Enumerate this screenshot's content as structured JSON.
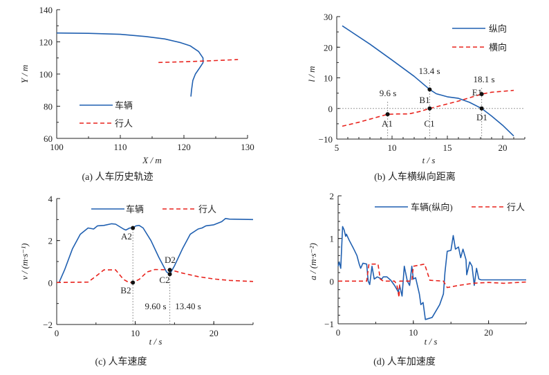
{
  "chart_data": [
    {
      "id": "a",
      "type": "line",
      "caption": "(a)  人车历史轨迹",
      "xlabel": "X / m",
      "ylabel": "Y / m",
      "xlim": [
        100,
        130
      ],
      "ylim": [
        60,
        140
      ],
      "xticks": [
        100,
        110,
        120,
        130
      ],
      "yticks": [
        60,
        80,
        100,
        120,
        140
      ],
      "xminor": 5,
      "yminor": 10,
      "series": [
        {
          "name": "车辆",
          "color": "#1f5fb0",
          "dash": false,
          "x": [
            100,
            105,
            110,
            114,
            117,
            119.5,
            121,
            122.3,
            123,
            123,
            122.5,
            121.8,
            121.4,
            121.2,
            121.1
          ],
          "y": [
            125.5,
            125.3,
            124.7,
            123.3,
            121.8,
            119.5,
            117.5,
            114,
            110,
            107,
            104,
            100,
            96,
            90,
            86
          ]
        },
        {
          "name": "行人",
          "color": "#e8221c",
          "dash": true,
          "x": [
            116,
            120,
            124,
            128.5
          ],
          "y": [
            107.2,
            107.6,
            108.2,
            109
          ]
        }
      ],
      "points": [],
      "annotations": []
    },
    {
      "id": "b",
      "type": "line",
      "caption": "(b)  人车横纵向距离",
      "xlabel": "t / s",
      "ylabel": "l / m",
      "xlim": [
        5,
        22
      ],
      "ylim": [
        -10,
        30
      ],
      "xticks": [
        5,
        10,
        15,
        20
      ],
      "yticks": [
        -10,
        0,
        10,
        20,
        30
      ],
      "xminor": 1,
      "yminor": 5,
      "hline": 0,
      "series": [
        {
          "name": "纵向",
          "color": "#1f5fb0",
          "dash": false,
          "x": [
            5.5,
            8,
            10,
            12,
            13.4,
            14,
            15,
            16,
            17,
            18.1,
            19,
            20,
            21
          ],
          "y": [
            27,
            21,
            15.8,
            10.5,
            6.2,
            4.8,
            3.8,
            3.3,
            2,
            0,
            -2.5,
            -5.5,
            -9
          ]
        },
        {
          "name": "横向",
          "color": "#e8221c",
          "dash": true,
          "x": [
            5.5,
            7,
            8.5,
            9.6,
            10.5,
            11.5,
            12.5,
            13.4,
            14.5,
            16,
            17,
            18.1,
            19,
            20,
            21
          ],
          "y": [
            -5.8,
            -4.5,
            -3,
            -1.9,
            -1.8,
            -1.8,
            -1,
            0,
            1,
            2.4,
            3.5,
            4.7,
            5.3,
            5.6,
            5.9
          ]
        }
      ],
      "vlines": [
        {
          "x": 9.6,
          "top": 2.5
        },
        {
          "x": 13.4,
          "top": 9.5
        },
        {
          "x": 18.1,
          "top": 7
        }
      ],
      "points": [
        {
          "label": "A1",
          "x": 9.6,
          "y": -1.9
        },
        {
          "label": "B1",
          "x": 13.4,
          "y": 6.2
        },
        {
          "label": "C1",
          "x": 13.4,
          "y": 0
        },
        {
          "label": "D1",
          "x": 18.1,
          "y": 0
        },
        {
          "label": "E1",
          "x": 18.1,
          "y": 4.7
        }
      ],
      "annotations": [
        "9.6 s",
        "13.4 s",
        "18.1 s"
      ]
    },
    {
      "id": "c",
      "type": "line",
      "caption": "(c)  人车速度",
      "xlabel": "t / s",
      "ylabel": "v / (m·s⁻¹)",
      "xlim": [
        0,
        25
      ],
      "ylim": [
        -2,
        4
      ],
      "xticks": [
        0,
        10,
        20
      ],
      "yticks": [
        -2,
        0,
        2,
        4
      ],
      "xminor": 5,
      "yminor": 1,
      "series": [
        {
          "name": "车辆",
          "color": "#1f5fb0",
          "dash": false,
          "x": [
            0.3,
            1,
            2,
            3,
            4,
            4.7,
            5.2,
            6,
            7,
            7.5,
            8.5,
            8.8,
            9.3,
            9.7,
            10.1,
            10.5,
            11,
            12,
            13,
            14,
            14.4,
            15,
            16,
            17,
            18,
            18.5,
            19,
            20,
            21,
            21.5,
            22,
            25
          ],
          "y": [
            0,
            0.6,
            1.6,
            2.3,
            2.6,
            2.55,
            2.7,
            2.72,
            2.8,
            2.78,
            2.55,
            2.5,
            2.6,
            2.6,
            2.7,
            2.72,
            2.6,
            2,
            1.2,
            0.5,
            0.4,
            0.8,
            1.6,
            2.3,
            2.55,
            2.6,
            2.7,
            2.75,
            2.9,
            3.05,
            3.02,
            3.0
          ]
        },
        {
          "name": "行人",
          "color": "#e8221c",
          "dash": true,
          "x": [
            0,
            4,
            5,
            6,
            7.5,
            8.5,
            9.2,
            9.7,
            10.5,
            11.5,
            12.5,
            14.5,
            16,
            18,
            20,
            22,
            25
          ],
          "y": [
            0,
            0.02,
            0.3,
            0.6,
            0.6,
            0.15,
            0,
            0,
            0.15,
            0.5,
            0.62,
            0.6,
            0.45,
            0.28,
            0.17,
            0.1,
            0.05
          ]
        }
      ],
      "vlines": [
        {
          "x": 9.7,
          "top": 2.6
        },
        {
          "x": 14.4,
          "top": 0.6
        }
      ],
      "points": [
        {
          "label": "A2",
          "x": 9.7,
          "y": 2.6
        },
        {
          "label": "B2",
          "x": 9.7,
          "y": 0
        },
        {
          "label": "D2",
          "x": 14.4,
          "y": 0.6
        },
        {
          "label": "C2",
          "x": 14.4,
          "y": 0.4
        }
      ],
      "annotations": [
        "9.60 s",
        "13.40 s"
      ]
    },
    {
      "id": "d",
      "type": "line",
      "caption": "(d)  人车加速度",
      "xlabel": "t / s",
      "ylabel": "a / (m·s⁻²)",
      "xlim": [
        0,
        25
      ],
      "ylim": [
        -1,
        2
      ],
      "xticks": [
        0,
        10,
        20
      ],
      "yticks": [
        -1,
        0,
        1,
        2
      ],
      "xminor": 5,
      "yminor": 0.2,
      "series": [
        {
          "name": "车辆(纵向)",
          "color": "#1f5fb0",
          "dash": false,
          "x": [
            0,
            0.15,
            0.35,
            0.6,
            0.8,
            1,
            1.1,
            1.5,
            2,
            2.5,
            2.8,
            3,
            3.3,
            3.8,
            4,
            4.2,
            4.5,
            4.8,
            5.2,
            5.8,
            6,
            6.5,
            7,
            7.5,
            8,
            8.2,
            8.5,
            8.8,
            9.2,
            9.5,
            9.8,
            10,
            10.3,
            10.8,
            11,
            11.3,
            11.6,
            12.5,
            13.5,
            14,
            14.2,
            14.5,
            15,
            15.3,
            15.6,
            16,
            16.3,
            16.6,
            17,
            17.1,
            17.5,
            17.8,
            18.1,
            18.4,
            18.7,
            19,
            25
          ],
          "y": [
            0.35,
            0.45,
            0.3,
            1.28,
            1.2,
            1.05,
            1.1,
            0.95,
            0.78,
            0.6,
            0.4,
            0.3,
            0.42,
            0.4,
            0,
            -0.08,
            0.35,
            0.05,
            0.1,
            0.05,
            0.1,
            0.1,
            0.02,
            -0.1,
            -0.25,
            -0.12,
            -0.35,
            0.35,
            0,
            -0.1,
            0.35,
            0.05,
            0.08,
            -0.3,
            -0.55,
            -0.5,
            -0.9,
            -0.85,
            -0.55,
            -0.3,
            0.2,
            0.7,
            0.72,
            1.07,
            0.75,
            0.8,
            0.55,
            0.75,
            0.5,
            0.15,
            0.45,
            0.35,
            -0.1,
            0.3,
            0.05,
            0.03,
            0.03
          ]
        },
        {
          "name": "行人",
          "color": "#e8221c",
          "dash": true,
          "x": [
            0,
            3.8,
            4.1,
            5.3,
            5.6,
            6,
            7.5,
            7.8,
            8.1,
            8.2,
            9.8,
            10,
            11.5,
            12.2,
            14,
            14.5,
            16,
            18,
            20,
            22,
            25
          ],
          "y": [
            0,
            0,
            0.4,
            0.4,
            0.05,
            0,
            0,
            -0.08,
            -0.38,
            0,
            0,
            0.35,
            0.4,
            0.02,
            0,
            -0.15,
            -0.1,
            -0.05,
            -0.03,
            -0.05,
            -0.02
          ]
        }
      ],
      "points": [],
      "annotations": []
    }
  ]
}
